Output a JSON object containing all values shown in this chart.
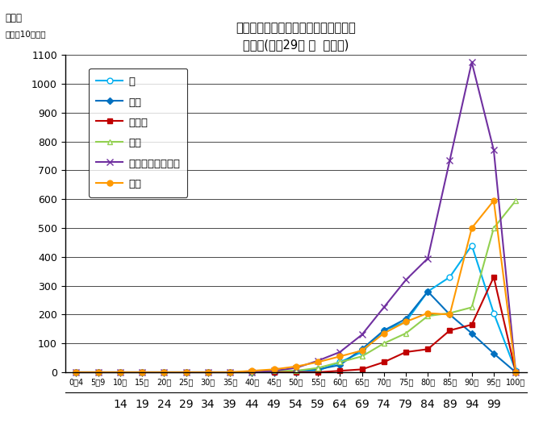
{
  "title_line1": "部位別にみた悪性新生物の年齢階級別",
  "title_line2": "死亡率(平成29年 男  熊本県)",
  "ylabel_line1": "死亡率",
  "ylabel_line2": "（人口10万対）",
  "ylim": [
    0,
    1100
  ],
  "yticks": [
    0,
    100,
    200,
    300,
    400,
    500,
    600,
    700,
    800,
    900,
    1000,
    1100
  ],
  "top_labels": [
    "0～4",
    "5～9",
    "10～",
    "15～",
    "20～",
    "25～",
    "30～",
    "35～",
    "40～",
    "45～",
    "50～",
    "55～",
    "60～",
    "65～",
    "70～",
    "75～",
    "80～",
    "85～",
    "90～",
    "95～",
    "100～"
  ],
  "bottom_labels": [
    "",
    "",
    "14",
    "19",
    "24",
    "29",
    "34",
    "39",
    "44",
    "49",
    "54",
    "59",
    "64",
    "69",
    "74",
    "79",
    "84",
    "89",
    "94",
    "99",
    ""
  ],
  "series": [
    {
      "name": "胃",
      "color": "#00b0f0",
      "marker": "o",
      "markerfacecolor": "white",
      "markersize": 5,
      "linewidth": 1.5,
      "values": [
        0,
        0,
        0,
        0,
        0,
        0,
        0,
        0,
        0,
        0,
        0,
        5,
        35,
        70,
        145,
        175,
        280,
        330,
        440,
        205,
        5
      ]
    },
    {
      "name": "肝臓",
      "color": "#0070c0",
      "marker": "D",
      "markerfacecolor": "#0070c0",
      "markersize": 4,
      "linewidth": 1.5,
      "values": [
        0,
        0,
        0,
        0,
        0,
        0,
        0,
        0,
        0,
        0,
        5,
        10,
        25,
        80,
        145,
        185,
        280,
        200,
        135,
        65,
        0
      ]
    },
    {
      "name": "胆のう",
      "color": "#c00000",
      "marker": "s",
      "markerfacecolor": "#c00000",
      "markersize": 5,
      "linewidth": 1.5,
      "values": [
        0,
        0,
        0,
        0,
        0,
        0,
        0,
        0,
        0,
        0,
        0,
        0,
        5,
        10,
        35,
        70,
        80,
        145,
        165,
        330,
        0
      ]
    },
    {
      "name": "膵臓",
      "color": "#92d050",
      "marker": "^",
      "markerfacecolor": "white",
      "markersize": 5,
      "linewidth": 1.5,
      "values": [
        0,
        0,
        0,
        0,
        0,
        0,
        0,
        0,
        0,
        5,
        5,
        15,
        35,
        55,
        100,
        135,
        195,
        205,
        225,
        500,
        595
      ]
    },
    {
      "name": "気管・気管支・肺",
      "color": "#7030a0",
      "marker": "x",
      "markerfacecolor": "#7030a0",
      "markersize": 6,
      "linewidth": 1.5,
      "values": [
        0,
        0,
        0,
        0,
        0,
        0,
        0,
        0,
        0,
        5,
        15,
        40,
        70,
        130,
        225,
        320,
        395,
        735,
        1075,
        770,
        0
      ]
    },
    {
      "name": "大腸",
      "color": "#ff9900",
      "marker": "o",
      "markerfacecolor": "#ff9900",
      "markersize": 5,
      "linewidth": 1.5,
      "values": [
        0,
        0,
        0,
        0,
        0,
        0,
        0,
        0,
        5,
        10,
        20,
        35,
        55,
        75,
        135,
        175,
        205,
        200,
        500,
        595,
        0
      ]
    }
  ]
}
